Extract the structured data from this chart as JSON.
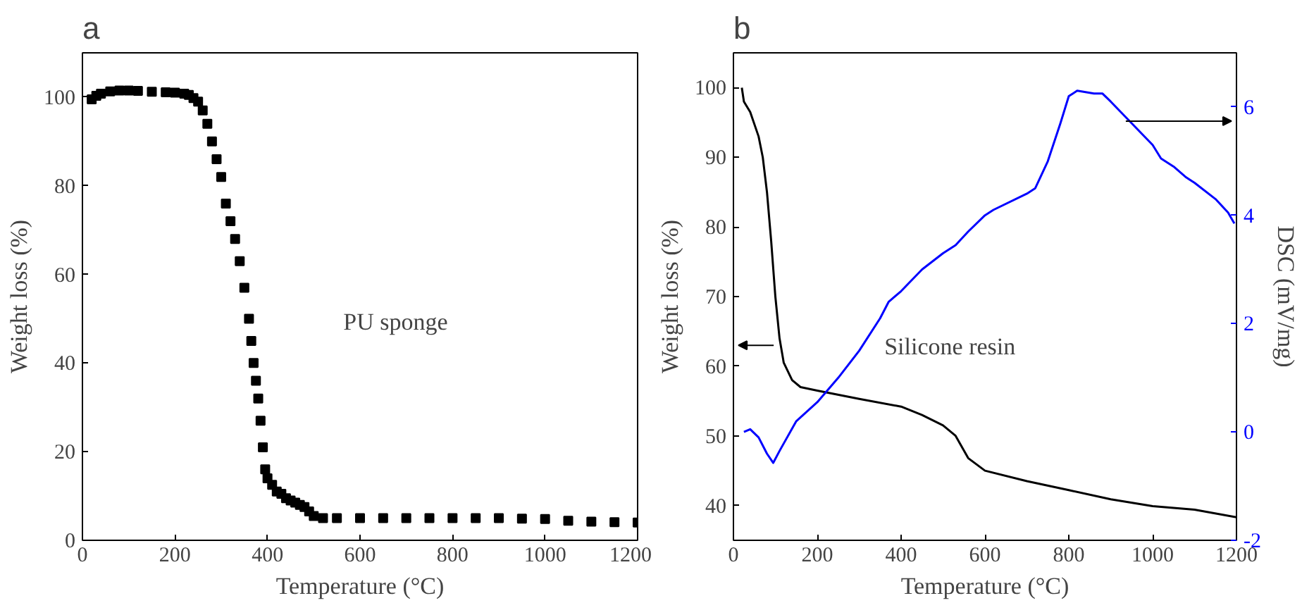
{
  "chart_data": [
    {
      "type": "scatter",
      "title": "a",
      "xlabel": "Temperature (°C)",
      "ylabel": "Weight loss (%)",
      "xlim": [
        0,
        1200
      ],
      "ylim": [
        0,
        110
      ],
      "xticks": [
        0,
        200,
        400,
        600,
        800,
        1000,
        1200
      ],
      "yticks": [
        0,
        20,
        40,
        60,
        80,
        100
      ],
      "marker": "square",
      "grid": false,
      "series": [
        {
          "name": "PU sponge",
          "color": "#000000",
          "x": [
            20,
            30,
            40,
            60,
            80,
            100,
            120,
            150,
            180,
            200,
            220,
            230,
            240,
            250,
            260,
            270,
            280,
            290,
            300,
            310,
            320,
            330,
            340,
            350,
            360,
            365,
            370,
            375,
            380,
            385,
            390,
            395,
            400,
            410,
            420,
            430,
            440,
            450,
            460,
            470,
            480,
            490,
            500,
            520,
            550,
            600,
            650,
            700,
            750,
            800,
            850,
            900,
            950,
            1000,
            1050,
            1100,
            1150,
            1200
          ],
          "values": [
            99.5,
            100.3,
            100.8,
            101.3,
            101.5,
            101.5,
            101.4,
            101.2,
            101.1,
            101,
            100.8,
            100.5,
            99.8,
            99,
            97,
            94,
            90,
            86,
            82,
            76,
            72,
            68,
            63,
            57,
            50,
            45,
            40,
            36,
            32,
            27,
            21,
            16,
            14,
            12.5,
            11,
            10.5,
            9.5,
            9,
            8.5,
            8,
            7.5,
            6.5,
            5.5,
            5,
            5,
            5,
            5,
            5,
            5,
            5,
            5,
            5,
            4.9,
            4.8,
            4.4,
            4.2,
            4.1,
            4
          ]
        }
      ]
    },
    {
      "type": "line",
      "title": "b",
      "xlabel": "Temperature (°C)",
      "ylabel": "Weight loss (%)",
      "y2label": "DSC (mV/mg)",
      "xlim": [
        0,
        1200
      ],
      "ylim": [
        35,
        105
      ],
      "y2lim": [
        -2,
        7
      ],
      "xticks": [
        0,
        200,
        400,
        600,
        800,
        1000,
        1200
      ],
      "yticks": [
        40,
        50,
        60,
        70,
        80,
        90,
        100
      ],
      "y2ticks": [
        -2,
        0,
        2,
        4,
        6
      ],
      "grid": false,
      "marker": "none",
      "line_style": "solid",
      "annotations": [
        "Silicone resin"
      ],
      "series": [
        {
          "color": "#000000",
          "x": [
            20,
            25,
            40,
            60,
            70,
            80,
            90,
            100,
            110,
            120,
            140,
            160,
            200,
            300,
            400,
            450,
            500,
            530,
            560,
            600,
            700,
            800,
            900,
            1000,
            1100,
            1200
          ],
          "values": [
            100,
            98,
            96.5,
            93,
            90,
            85,
            78,
            70,
            64,
            60.5,
            58,
            57,
            56.5,
            55.3,
            54.2,
            53,
            51.5,
            50,
            46.8,
            45,
            43.5,
            42.2,
            40.9,
            39.9,
            39.4,
            38.3
          ]
        },
        {
          "color": "#0000ff",
          "axis": "y2",
          "x": [
            25,
            40,
            60,
            80,
            95,
            110,
            150,
            200,
            250,
            300,
            350,
            370,
            400,
            450,
            500,
            530,
            560,
            600,
            620,
            700,
            720,
            750,
            780,
            800,
            820,
            860,
            880,
            900,
            950,
            1000,
            1020,
            1050,
            1080,
            1100,
            1150,
            1180,
            1195
          ],
          "values": [
            0.0,
            0.05,
            -0.1,
            -0.4,
            -0.57,
            -0.35,
            0.2,
            0.55,
            1.0,
            1.5,
            2.1,
            2.4,
            2.6,
            3.0,
            3.3,
            3.45,
            3.7,
            4.0,
            4.1,
            4.4,
            4.5,
            5.0,
            5.7,
            6.2,
            6.3,
            6.25,
            6.25,
            6.1,
            5.7,
            5.3,
            5.05,
            4.9,
            4.7,
            4.6,
            4.3,
            4.05,
            3.85
          ]
        }
      ]
    }
  ]
}
